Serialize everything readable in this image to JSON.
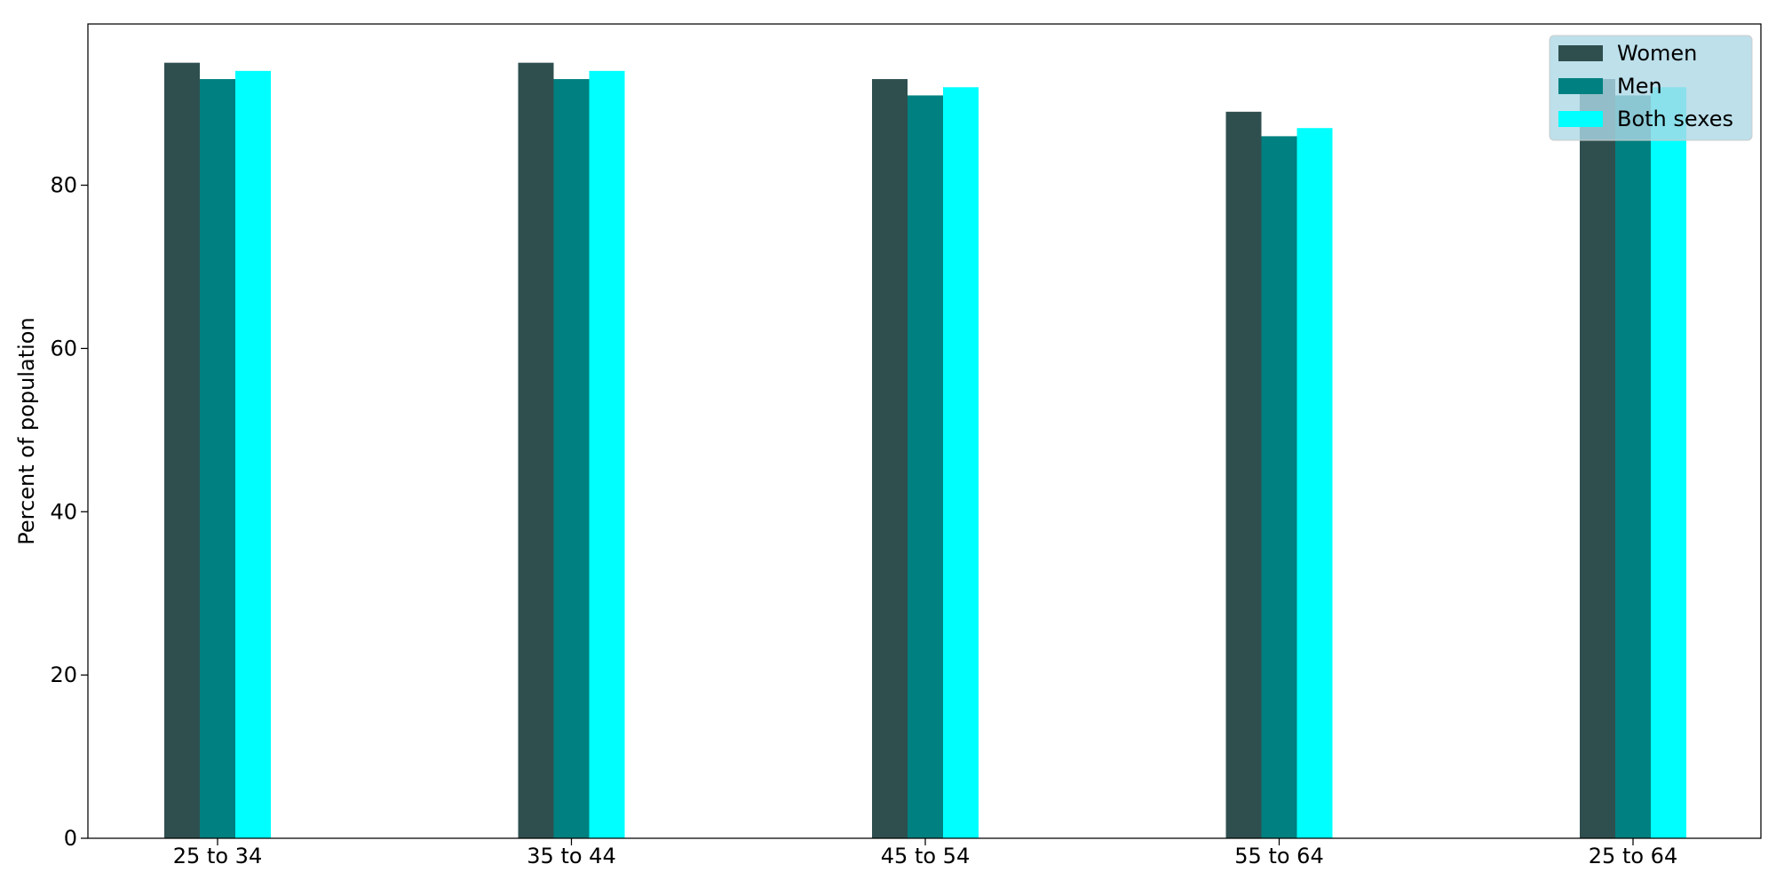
{
  "chart_data": {
    "type": "bar",
    "title": "",
    "xlabel": "",
    "ylabel": "Percent of population",
    "categories": [
      "25 to 34",
      "35 to 44",
      "45 to 54",
      "55 to 64",
      "25 to 64"
    ],
    "series": [
      {
        "name": "Women",
        "color": "#2f4f4f",
        "values": [
          95,
          95,
          93,
          89,
          93
        ]
      },
      {
        "name": "Men",
        "color": "#008080",
        "values": [
          93,
          93,
          91,
          86,
          91
        ]
      },
      {
        "name": "Both sexes",
        "color": "#00ffff",
        "values": [
          94,
          94,
          92,
          87,
          92
        ]
      }
    ],
    "ylim": [
      0,
      99.75
    ],
    "yticks": [
      0,
      20,
      40,
      60,
      80
    ],
    "legend": {
      "position": "top-right",
      "background": "#add8e6"
    },
    "grid": false
  }
}
